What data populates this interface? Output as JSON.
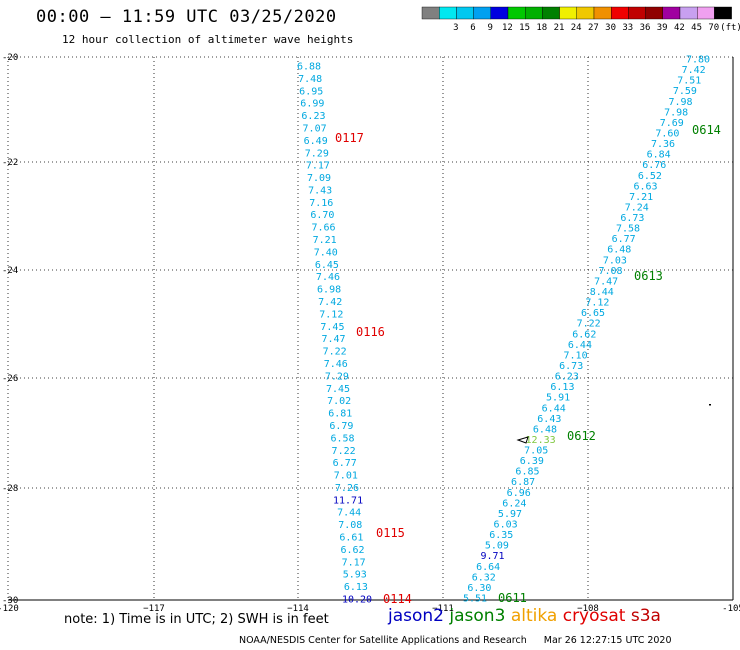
{
  "header": {
    "title": "00:00 – 11:59 UTC 03/25/2020",
    "subtitle": "12 hour collection of altimeter wave heights"
  },
  "legend": {
    "swatches": [
      {
        "color": "#808080",
        "label": ""
      },
      {
        "color": "#00e8f0",
        "label": "3"
      },
      {
        "color": "#00c8f0",
        "label": "6"
      },
      {
        "color": "#00a0f0",
        "label": "9"
      },
      {
        "color": "#0000e0",
        "label": "12"
      },
      {
        "color": "#00c800",
        "label": "15"
      },
      {
        "color": "#00b000",
        "label": "18"
      },
      {
        "color": "#008000",
        "label": "21"
      },
      {
        "color": "#f0f000",
        "label": "24"
      },
      {
        "color": "#f0c800",
        "label": "27"
      },
      {
        "color": "#f09000",
        "label": "30"
      },
      {
        "color": "#f00000",
        "label": "33"
      },
      {
        "color": "#c00000",
        "label": "36"
      },
      {
        "color": "#900000",
        "label": "39"
      },
      {
        "color": "#a000a0",
        "label": "42"
      },
      {
        "color": "#c8a0f0",
        "label": "45"
      },
      {
        "color": "#f0a0f0",
        "label": "70"
      },
      {
        "color": "#000000",
        "label": "(ft)"
      }
    ]
  },
  "axes": {
    "lon_ticks": [
      "-120",
      "−117",
      "−114",
      "−111",
      "−108",
      "-105"
    ],
    "lat_ticks": [
      "-20",
      "-22",
      "-24",
      "-26",
      "-28",
      "-30"
    ]
  },
  "colors": {
    "jason2": "#0000c0",
    "jason3": "#008000",
    "altika": "#f0a000",
    "cryosat": "#e00000",
    "s3a": "#c00000",
    "wave_default": "#00a8e0",
    "grid": "#000000"
  },
  "track_west": {
    "values": [
      "6.88",
      "7.48",
      "6.95",
      "6.99",
      "6.23",
      "7.07",
      "6.49",
      "7.29",
      "7.17",
      "7.09",
      "7.43",
      "7.16",
      "6.70",
      "7.66",
      "7.21",
      "7.40",
      "6.45",
      "7.46",
      "6.98",
      "7.42",
      "7.12",
      "7.45",
      "7.47",
      "7.22",
      "7.46",
      "7.29",
      "7.45",
      "7.02",
      "6.81",
      "6.79",
      "6.58",
      "7.22",
      "6.77",
      "7.01",
      "7.26",
      "11.71",
      "7.44",
      "7.08",
      "6.61",
      "6.62",
      "7.17",
      "5.93",
      "6.13",
      "10.20"
    ],
    "value_colors": {
      "35": "#0000c0",
      "43": "#0000c0"
    },
    "passes": [
      "0117",
      "0116",
      "0115",
      "0114"
    ]
  },
  "track_east": {
    "values": [
      "7.80",
      "7.42",
      "7.51",
      "7.59",
      "7.98",
      "7.98",
      "7.69",
      "7.60",
      "7.36",
      "6.84",
      "6.76",
      "6.52",
      "6.63",
      "7.21",
      "7.24",
      "6.73",
      "7.58",
      "6.77",
      "6.48",
      "7.03",
      "7.08",
      "7.47",
      "8.44",
      "7.12",
      "6.65",
      "7.22",
      "6.62",
      "6.44",
      "7.10",
      "6.73",
      "6.23",
      "6.13",
      "5.91",
      "6.44",
      "6.43",
      "6.48",
      "12.33",
      "7.05",
      "6.39",
      "6.85",
      "6.87",
      "6.96",
      "6.24",
      "5.97",
      "6.03",
      "6.35",
      "5.09",
      "9.71",
      "6.64",
      "6.32",
      "6.30",
      "5.51"
    ],
    "value_colors": {
      "36": "#80c840",
      "47": "#0000c0"
    },
    "passes": [
      "0614",
      "0613",
      "0612",
      "0611"
    ]
  },
  "footer": {
    "note": "note: 1) Time is in UTC; 2) SWH is in feet",
    "satellites": [
      {
        "name": "jason2",
        "color": "#0000c0"
      },
      {
        "name": "jason3",
        "color": "#008000"
      },
      {
        "name": "altika",
        "color": "#f0a000"
      },
      {
        "name": "cryosat",
        "color": "#e00000"
      },
      {
        "name": "s3a",
        "color": "#c00000"
      }
    ],
    "credit": "NOAA/NESDIS Center for Satellite Applications and Research",
    "timestamp": "Mar 26 12:27:15 UTC 2020"
  }
}
